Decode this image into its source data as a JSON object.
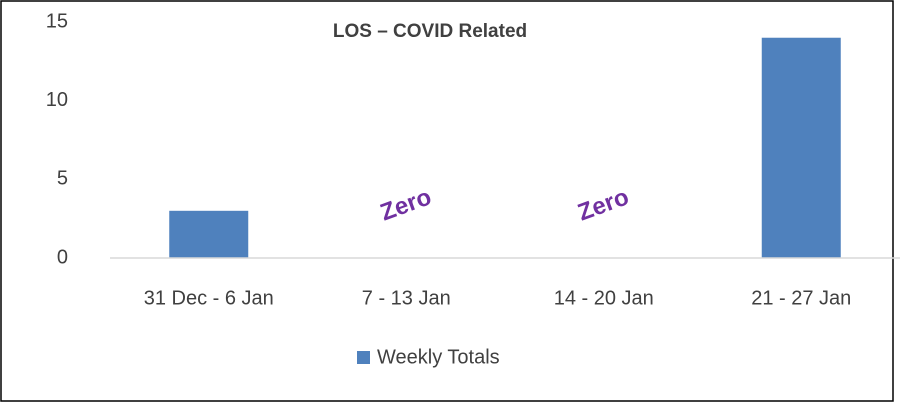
{
  "chart_data": {
    "type": "bar",
    "title": "LOS – COVID Related",
    "categories": [
      "31 Dec - 6 Jan",
      "7 - 13 Jan",
      "14 - 20 Jan",
      "21 - 27 Jan"
    ],
    "series": [
      {
        "name": "Weekly Totals",
        "color": "#4f81bd",
        "values": [
          3,
          0,
          0,
          14
        ]
      }
    ],
    "ylim": [
      0,
      15
    ],
    "yticks": [
      0,
      5,
      10,
      15
    ],
    "grid": false,
    "legend": "bottom",
    "annotations": [
      {
        "text": "Zero",
        "x": "7 - 13 Jan"
      },
      {
        "text": "Zero",
        "x": "14 - 20 Jan"
      }
    ]
  }
}
